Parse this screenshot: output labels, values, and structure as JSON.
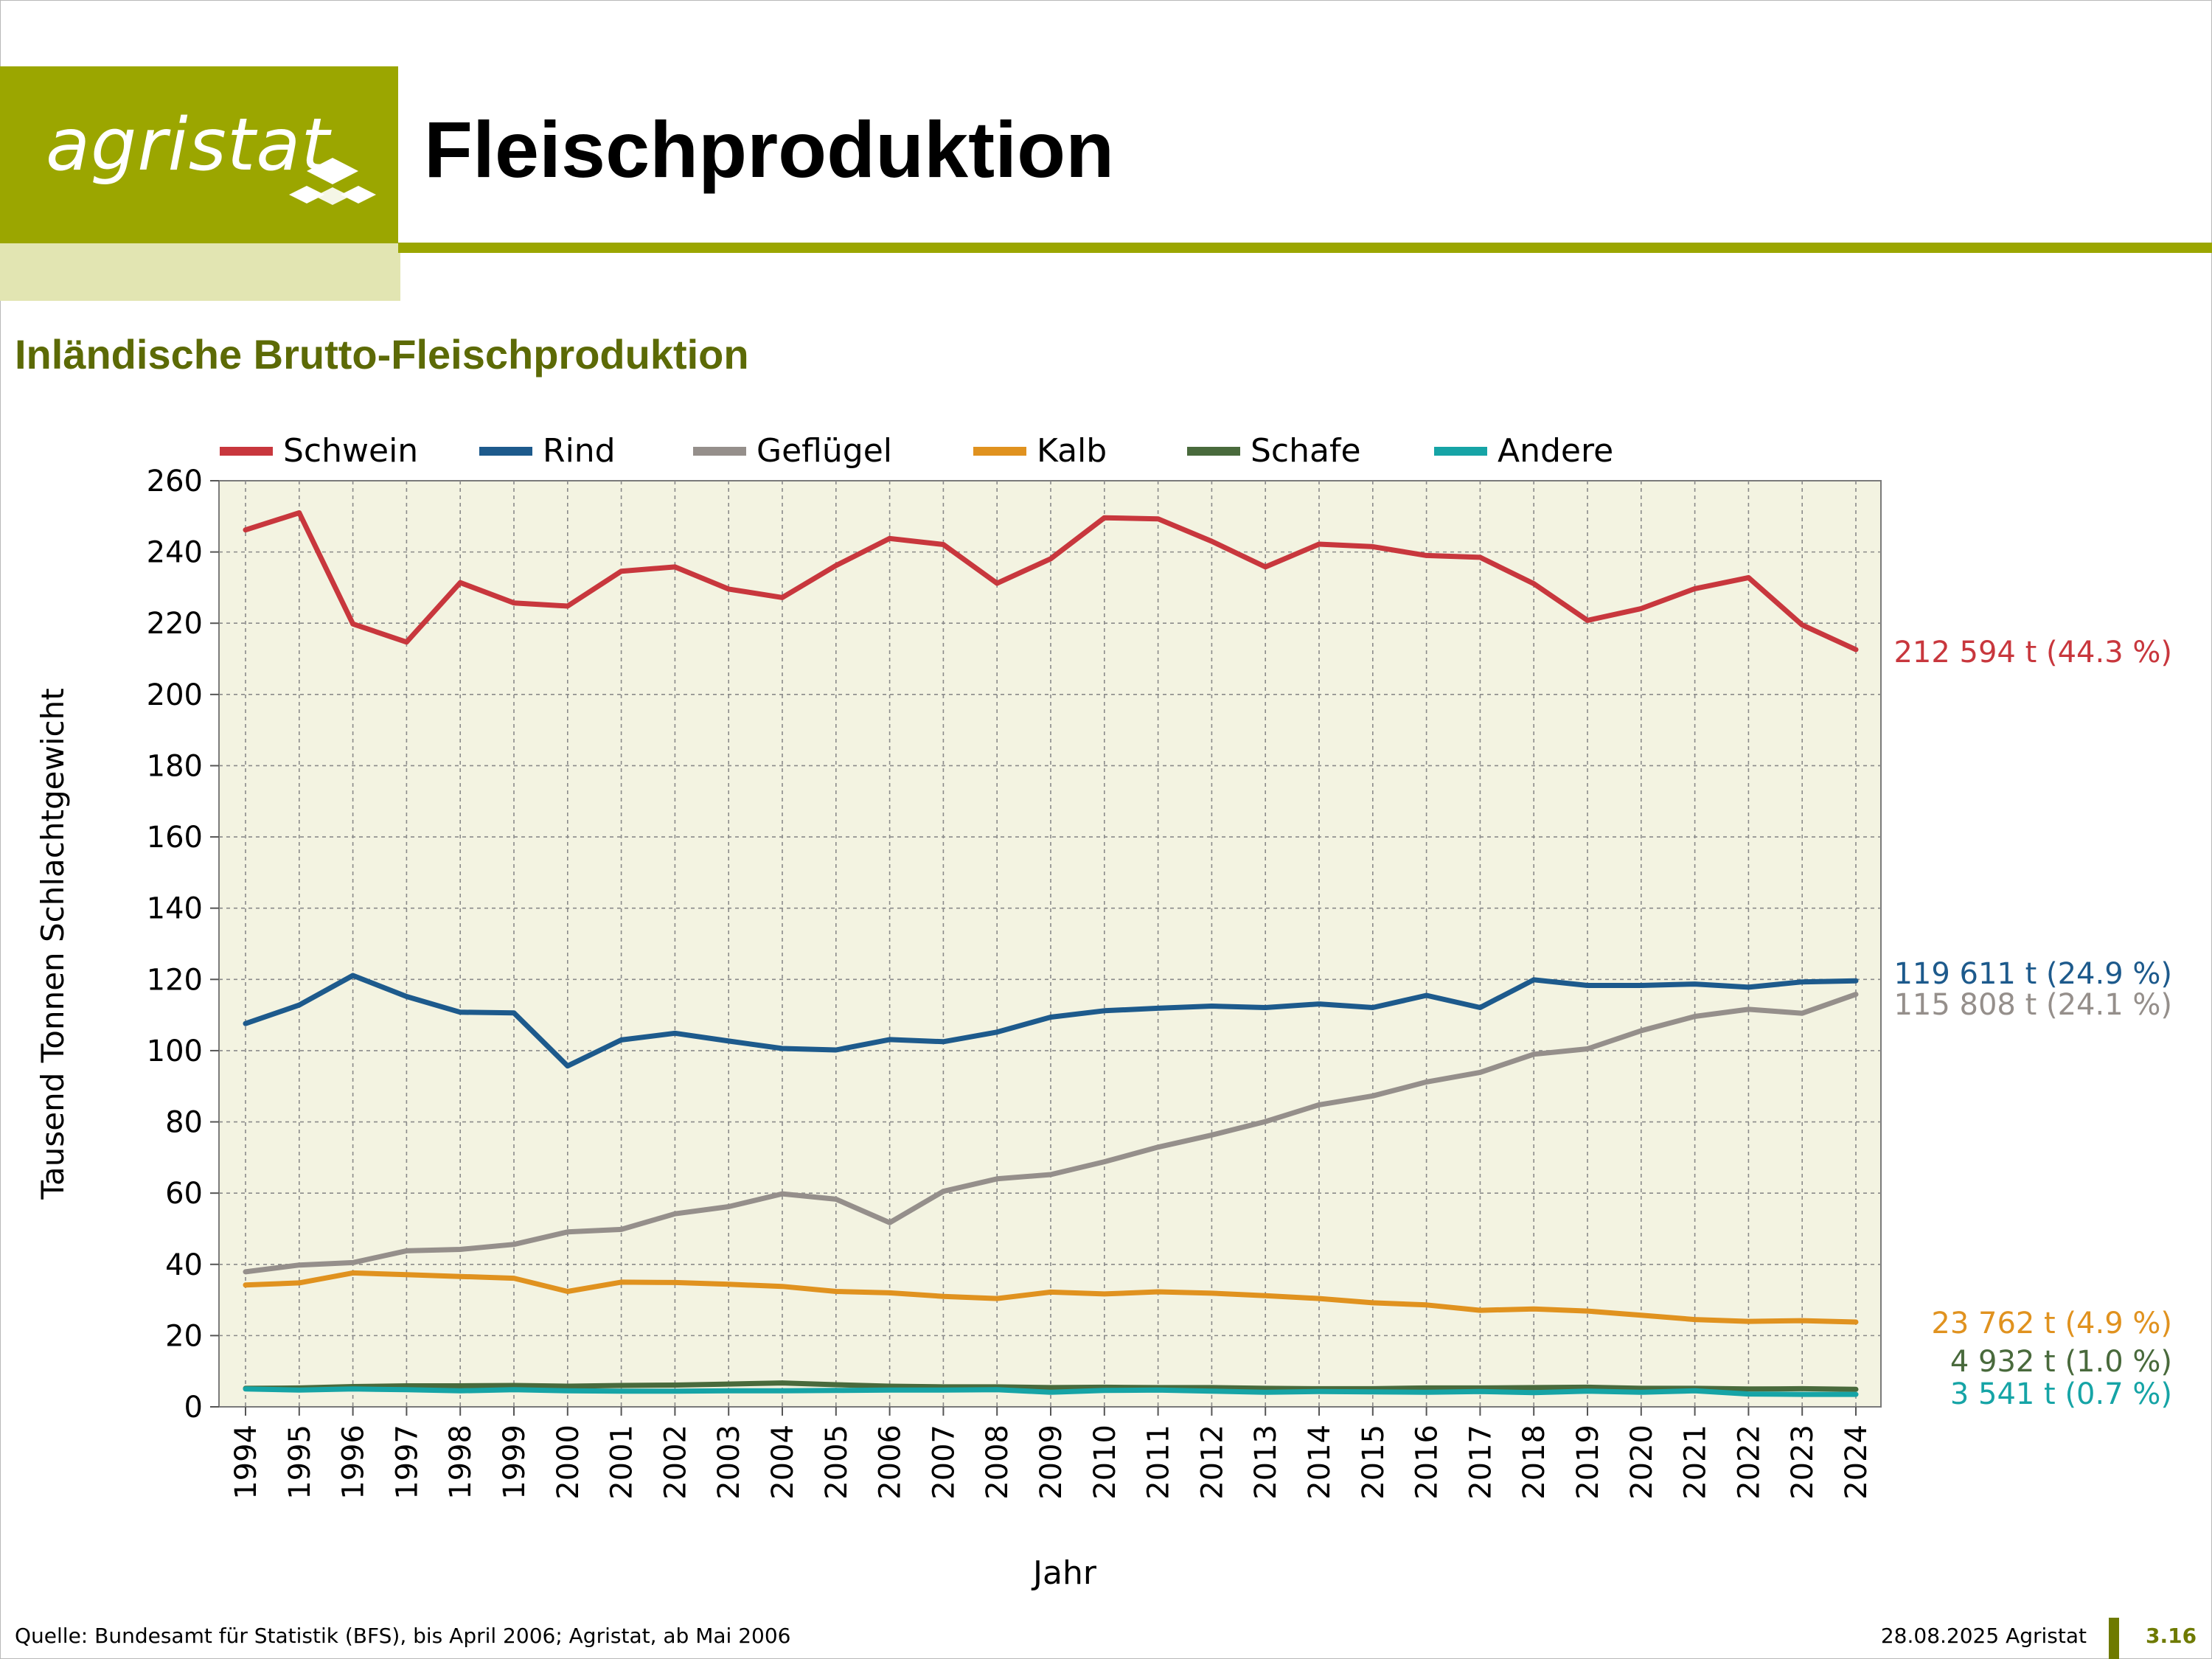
{
  "header": {
    "logo_text": "agristat",
    "title": "Fleischproduktion",
    "subtitle": "Inländische Brutto-Fleischproduktion"
  },
  "footer": {
    "source": "Quelle: Bundesamt für Statistik (BFS), bis April 2006; Agristat, ab Mai 2006",
    "date": "28.08.2025 Agristat",
    "page": "3.16"
  },
  "chart_data": {
    "type": "line",
    "title": "Inländische Brutto-Fleischproduktion",
    "xlabel": "Jahr",
    "ylabel": "Tausend Tonnen Schlachtgewicht",
    "ylim": [
      0,
      260
    ],
    "yticks": [
      0,
      20,
      40,
      60,
      80,
      100,
      120,
      140,
      160,
      180,
      200,
      220,
      240,
      260
    ],
    "grid": true,
    "legend_position": "top",
    "categories": [
      "1994",
      "1995",
      "1996",
      "1997",
      "1998",
      "1999",
      "2000",
      "2001",
      "2002",
      "2003",
      "2004",
      "2005",
      "2006",
      "2007",
      "2008",
      "2009",
      "2010",
      "2011",
      "2012",
      "2013",
      "2014",
      "2015",
      "2016",
      "2017",
      "2018",
      "2019",
      "2020",
      "2021",
      "2022",
      "2023",
      "2024"
    ],
    "series": [
      {
        "name": "Schwein",
        "color": "#c8373d",
        "values": [
          246.2,
          251,
          219.8,
          214.7,
          231.4,
          225.7,
          224.8,
          234.6,
          235.8,
          229.6,
          227.2,
          236.2,
          243.8,
          242.1,
          231.2,
          238.1,
          249.6,
          249.3,
          243,
          235.8,
          242.2,
          241.5,
          239,
          238.5,
          231.1,
          220.8,
          224.1,
          229.7,
          232.8,
          219.5,
          212.6
        ],
        "end_label": "212 594 t (44.3 %)"
      },
      {
        "name": "Rind",
        "color": "#1d5a8c",
        "values": [
          107.6,
          112.8,
          121.1,
          115.2,
          110.8,
          110.6,
          95.7,
          103,
          104.9,
          102.7,
          100.6,
          100.2,
          103.1,
          102.5,
          105.2,
          109.4,
          111.2,
          111.9,
          112.5,
          112.1,
          113.1,
          112.1,
          115.5,
          112.1,
          119.9,
          118.3,
          118.3,
          118.7,
          117.8,
          119.3,
          119.6
        ],
        "end_label": "119 611 t (24.9 %)"
      },
      {
        "name": "Geflügel",
        "color": "#958f8b",
        "values": [
          37.9,
          39.8,
          40.5,
          43.8,
          44.2,
          45.6,
          49.1,
          49.8,
          54.2,
          56.2,
          59.8,
          58.3,
          51.7,
          60.5,
          64,
          65.2,
          68.8,
          72.9,
          76.3,
          80.1,
          84.8,
          87.3,
          91.2,
          93.9,
          99,
          100.5,
          105.6,
          109.6,
          111.6,
          110.5,
          115.8
        ],
        "end_label": "115 808 t (24.1 %)"
      },
      {
        "name": "Kalb",
        "color": "#e0921f",
        "values": [
          34.2,
          34.8,
          37.6,
          37.1,
          36.6,
          36.1,
          32.4,
          35,
          34.9,
          34.4,
          33.8,
          32.4,
          32,
          31,
          30.4,
          32.2,
          31.7,
          32.3,
          31.9,
          31.2,
          30.4,
          29.2,
          28.6,
          27.1,
          27.5,
          26.9,
          25.7,
          24.5,
          24,
          24.2,
          23.8
        ],
        "end_label": "23 762 t (4.9 %)"
      },
      {
        "name": "Schafe",
        "color": "#496a3c",
        "values": [
          5.2,
          5.3,
          5.7,
          5.9,
          5.9,
          6,
          5.8,
          6,
          6.1,
          6.4,
          6.7,
          6.2,
          5.8,
          5.6,
          5.6,
          5.4,
          5.5,
          5.4,
          5.4,
          5.2,
          5.1,
          5.1,
          5.3,
          5.3,
          5.4,
          5.5,
          5.2,
          5.2,
          5,
          5.1,
          4.9
        ],
        "end_label": "4 932 t (1.0 %)"
      },
      {
        "name": "Andere",
        "color": "#16a4a6",
        "values": [
          5,
          4.7,
          5,
          4.8,
          4.5,
          4.8,
          4.5,
          4.4,
          4.4,
          4.5,
          4.5,
          4.6,
          4.7,
          4.7,
          4.8,
          4.1,
          4.6,
          4.7,
          4.4,
          4.1,
          4.3,
          4.2,
          4.1,
          4.3,
          4,
          4.4,
          4.1,
          4.5,
          3.6,
          3.5,
          3.5
        ],
        "end_label": "3 541 t (0.7 %)"
      }
    ]
  }
}
